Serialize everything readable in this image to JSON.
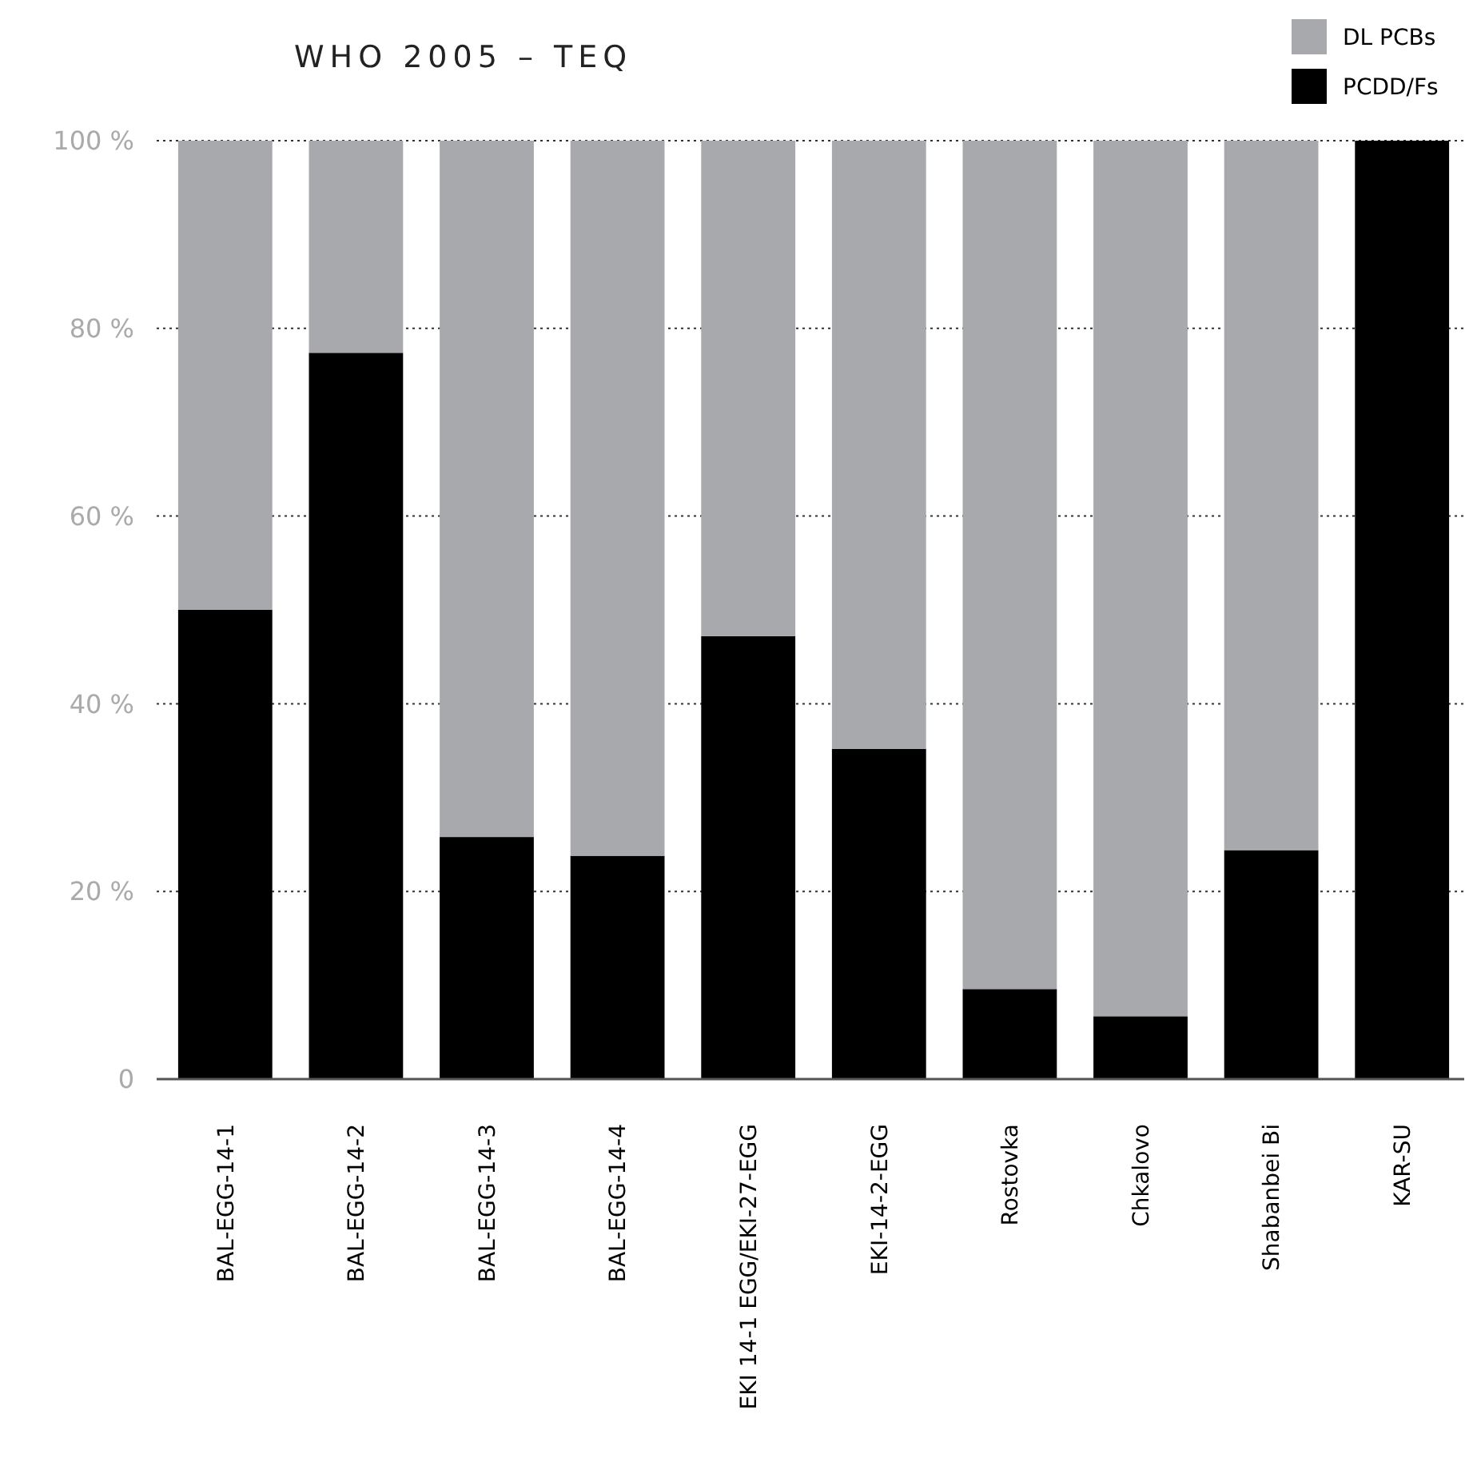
{
  "chart_data": {
    "type": "bar",
    "title": "WHO 2005 – TEQ",
    "stacked": true,
    "categories": [
      "BAL-EGG-14-1",
      "BAL-EGG-14-2",
      "BAL-EGG-14-3",
      "BAL-EGG-14-4",
      "EKI 14-1 EGG/EKI-27-EGG",
      "EKI-14-2-EGG",
      "Rostovka",
      "Chkalovo",
      "Shabanbei Bi",
      "KAR-SU"
    ],
    "series": [
      {
        "name": "PCDD/Fs",
        "color": "#000000",
        "values": [
          50,
          77.4,
          25.8,
          23.8,
          47.2,
          35.2,
          9.6,
          6.7,
          24.4,
          100
        ]
      },
      {
        "name": "DL PCBs",
        "color": "#a8a9ad",
        "values": [
          50,
          22.6,
          74.2,
          76.2,
          52.8,
          64.8,
          90.4,
          93.3,
          75.6,
          0
        ]
      }
    ],
    "ylim": [
      0,
      100
    ],
    "yticks": [
      0,
      {
        "value": 20,
        "label": "20 %"
      },
      {
        "value": 40,
        "label": "40 %"
      },
      {
        "value": 60,
        "label": "60 %"
      },
      {
        "value": 80,
        "label": "80 %"
      },
      {
        "value": 100,
        "label": "100 %"
      }
    ],
    "grid": "y",
    "legend": "top right"
  }
}
